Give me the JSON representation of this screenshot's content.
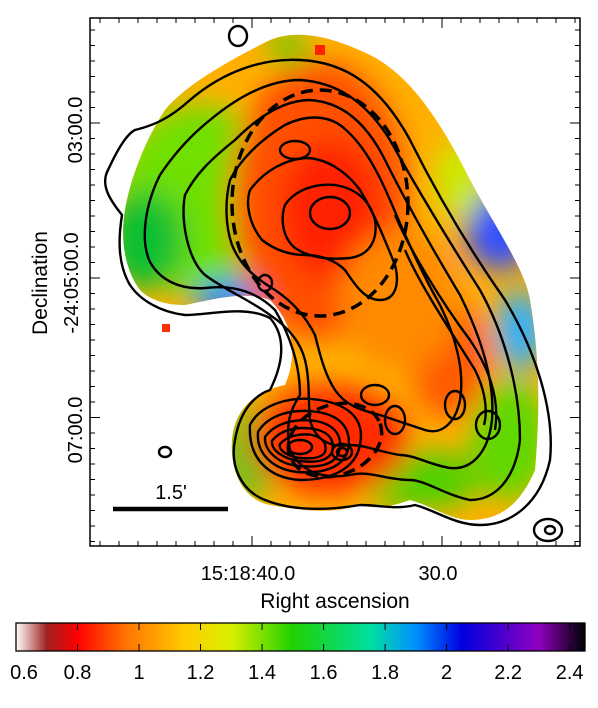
{
  "chart_data": {
    "type": "heatmap",
    "title": "",
    "xlabel": "Right ascension",
    "ylabel_lines": [
      "Declination",
      "-24:05:00.0"
    ],
    "x_ticks": [
      {
        "label": "15:18:40.0",
        "value": 40
      },
      {
        "label": "30.0",
        "value": 30
      }
    ],
    "y_ticks": [
      {
        "label": "03:00.0",
        "value": 3
      },
      {
        "label": "07:00.0",
        "value": 7
      }
    ],
    "scale_bar_label": "1.5'",
    "colorbar": {
      "min": 0.6,
      "max": 2.45,
      "tick_labels": [
        "0.6",
        "0.8",
        "1",
        "1.2",
        "1.4",
        "1.6",
        "1.8",
        "2",
        "2.2",
        "2.4"
      ],
      "tick_values": [
        0.6,
        0.8,
        1.0,
        1.2,
        1.4,
        1.6,
        1.8,
        2.0,
        2.2,
        2.4
      ],
      "colormap_stops": [
        {
          "v": 0.6,
          "color": "#ffffff"
        },
        {
          "v": 0.7,
          "color": "#a02020"
        },
        {
          "v": 0.8,
          "color": "#ff0000"
        },
        {
          "v": 0.95,
          "color": "#ff7000"
        },
        {
          "v": 1.15,
          "color": "#ffcc00"
        },
        {
          "v": 1.3,
          "color": "#d8f000"
        },
        {
          "v": 1.5,
          "color": "#20d000"
        },
        {
          "v": 1.75,
          "color": "#00e0a0"
        },
        {
          "v": 1.9,
          "color": "#0090ff"
        },
        {
          "v": 2.05,
          "color": "#0000e0"
        },
        {
          "v": 2.3,
          "color": "#9000c0"
        },
        {
          "v": 2.45,
          "color": "#000000"
        }
      ]
    },
    "legend": "none",
    "grid": false
  }
}
